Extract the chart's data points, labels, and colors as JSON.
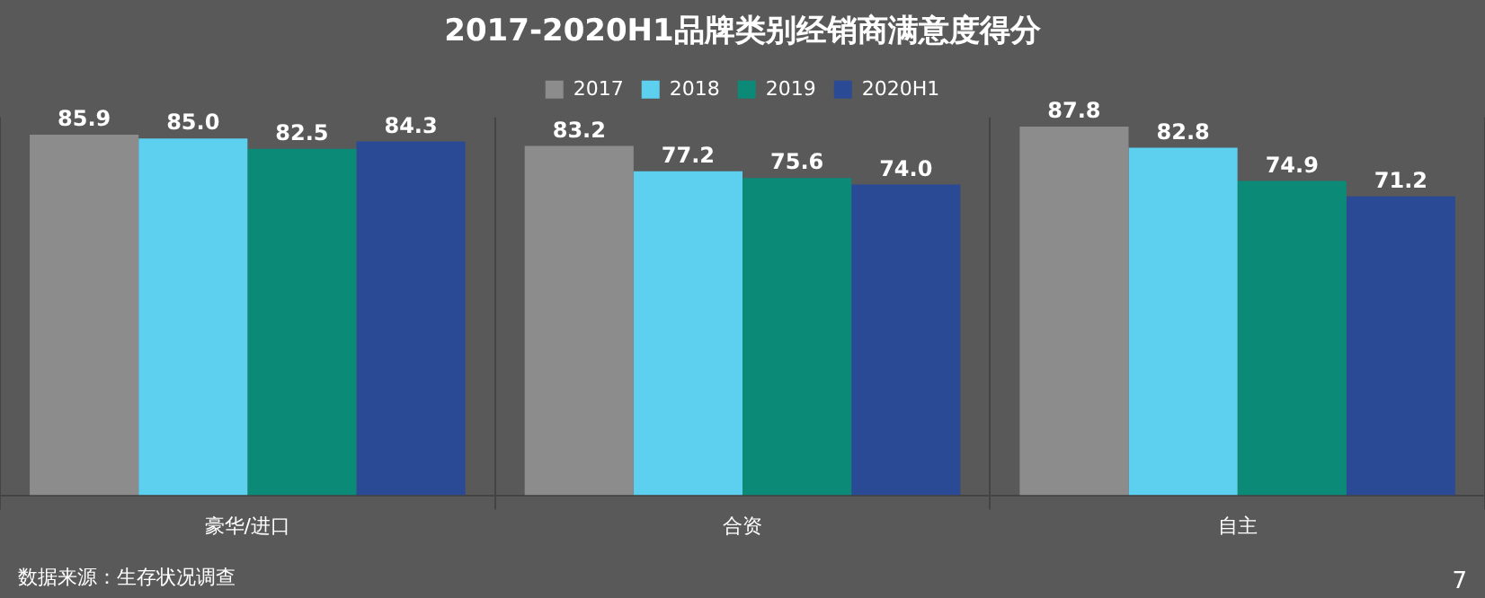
{
  "chart_data": {
    "type": "bar",
    "title": "2017-2020H1品牌类别经销商满意度得分",
    "categories": [
      "豪华/进口",
      "合资",
      "自主"
    ],
    "series": [
      {
        "name": "2017",
        "color": "#8c8c8c",
        "values": [
          85.9,
          83.2,
          87.8
        ],
        "value_labels": [
          "85.9",
          "83.2",
          "87.8"
        ]
      },
      {
        "name": "2018",
        "color": "#5dd0f0",
        "values": [
          85.0,
          77.2,
          82.8
        ],
        "value_labels": [
          "85.0",
          "77.2",
          "82.8"
        ]
      },
      {
        "name": "2019",
        "color": "#0b8a78",
        "values": [
          82.5,
          75.6,
          74.9
        ],
        "value_labels": [
          "82.5",
          "75.6",
          "74.9"
        ]
      },
      {
        "name": "2020H1",
        "color": "#2b4a96",
        "values": [
          84.3,
          74.0,
          71.2
        ],
        "value_labels": [
          "84.3",
          "74.0",
          "71.2"
        ]
      }
    ],
    "legend": "top",
    "grid": "x",
    "annotations": [
      "数据来源：生存状况调查",
      "7"
    ]
  }
}
